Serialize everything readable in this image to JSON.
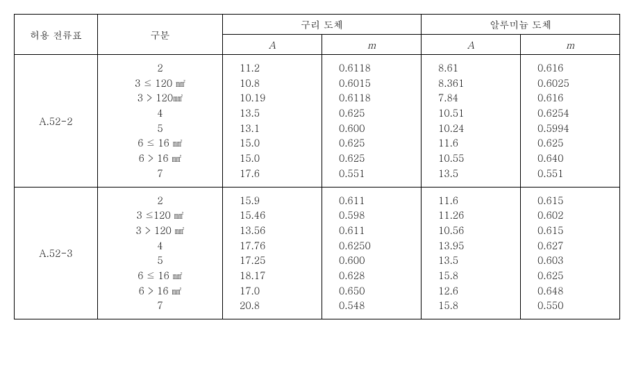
{
  "headers": {
    "c1": "허용 전류표",
    "c2": "구분",
    "group_cu": "구리 도체",
    "group_al": "알루미늄 도체",
    "A": "A",
    "m": "m"
  },
  "units": {
    "mm2": "㎟"
  },
  "rows": [
    {
      "id": "A.52-2",
      "segments": [
        "2",
        "3 ≤ 120 ㎟",
        "3 > 120㎟",
        "4",
        "5",
        "6 ≤ 16 ㎟",
        "6 > 16 ㎟",
        "7"
      ],
      "cu_A": [
        "11.2",
        "10.8",
        "10.19",
        "13.5",
        "13.1",
        "15.0",
        "15.0",
        "17.6"
      ],
      "cu_m": [
        "0.6118",
        "0.6015",
        "0.6118",
        "0.625",
        "0.600",
        "0.625",
        "0.625",
        "0.551"
      ],
      "al_A": [
        "8.61",
        "8.361",
        "7.84",
        "10.51",
        "10.24",
        "11.6",
        "10.55",
        "13.5"
      ],
      "al_m": [
        "0.616",
        "0.6025",
        "0.616",
        "0.6254",
        "0.5994",
        "0.625",
        "0.640",
        "0.551"
      ]
    },
    {
      "id": "A.52-3",
      "segments": [
        "2",
        "3 ≤120 ㎟",
        "3 > 120 ㎟",
        "4",
        "5",
        "6 ≤ 16 ㎟",
        "6 > 16 ㎟",
        "7"
      ],
      "cu_A": [
        "15.9",
        "15.46",
        "13.56",
        "17.76",
        "17.25",
        "18.17",
        "17.0",
        "20.8"
      ],
      "cu_m": [
        "0.611",
        "0.598",
        "0.611",
        "0.6250",
        "0.600",
        "0.628",
        "0.650",
        "0.548"
      ],
      "al_A": [
        "11.6",
        "11.26",
        "10.56",
        "13.95",
        "13.5",
        "15.8",
        "12.6",
        "15.8"
      ],
      "al_m": [
        "0.615",
        "0.602",
        "0.615",
        "0.627",
        "0.603",
        "0.625",
        "0.648",
        "0.550"
      ]
    }
  ]
}
